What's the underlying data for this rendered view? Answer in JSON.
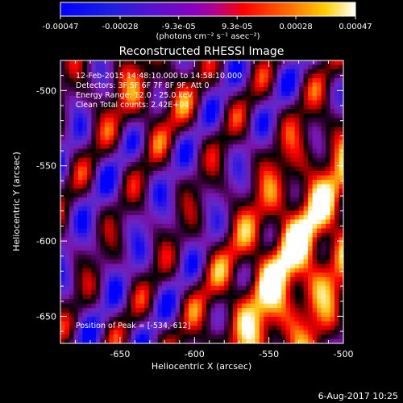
{
  "colorbar": {
    "tick_labels": [
      "-0.00047",
      "-0.00028",
      "-9.3e-05",
      "9.3e-05",
      "0.00028",
      "0.00047"
    ],
    "tick_values": [
      -0.00047,
      -0.00028,
      -9.3e-05,
      9.3e-05,
      0.00028,
      0.00047
    ],
    "unit_label": "(photons cm⁻² s⁻¹ asec⁻²)",
    "range": [
      -0.00047,
      0.00047
    ],
    "colors": [
      "#0000ff",
      "#3a00c8",
      "#7a00ff",
      "#b000b0",
      "#ff0000",
      "#ff8000",
      "#ffff00",
      "#ffffff"
    ]
  },
  "chart_data": {
    "type": "heatmap",
    "title": "Reconstructed RHESSI Image",
    "xlabel": "Heliocentric X (arcsec)",
    "ylabel": "Heliocentric Y (arcsec)",
    "xlim": [
      -690,
      -500
    ],
    "ylim": [
      -668,
      -480
    ],
    "x_ticks": [
      -650,
      -600,
      -550,
      -500
    ],
    "x_tick_labels": [
      "-650",
      "-600",
      "-550",
      "-500"
    ],
    "y_ticks": [
      -650,
      -600,
      -550,
      -500
    ],
    "y_tick_labels": [
      "-650",
      "-600",
      "-550",
      "-500"
    ],
    "peak": [
      -534,
      -612
    ],
    "annotations": [
      "12-Feb-2015 14:48:10.000 to 14:58:10.000",
      "Detectors: 3F 5F 6F 7F 8F 9F, Att 0",
      "Energy Range: 12.0 - 25.0 keV",
      "Clean     Total counts: 2.42E+04"
    ],
    "peak_label": "Position of Peak = [-534,-612]"
  },
  "footer_date": "6-Aug-2017 10:25"
}
